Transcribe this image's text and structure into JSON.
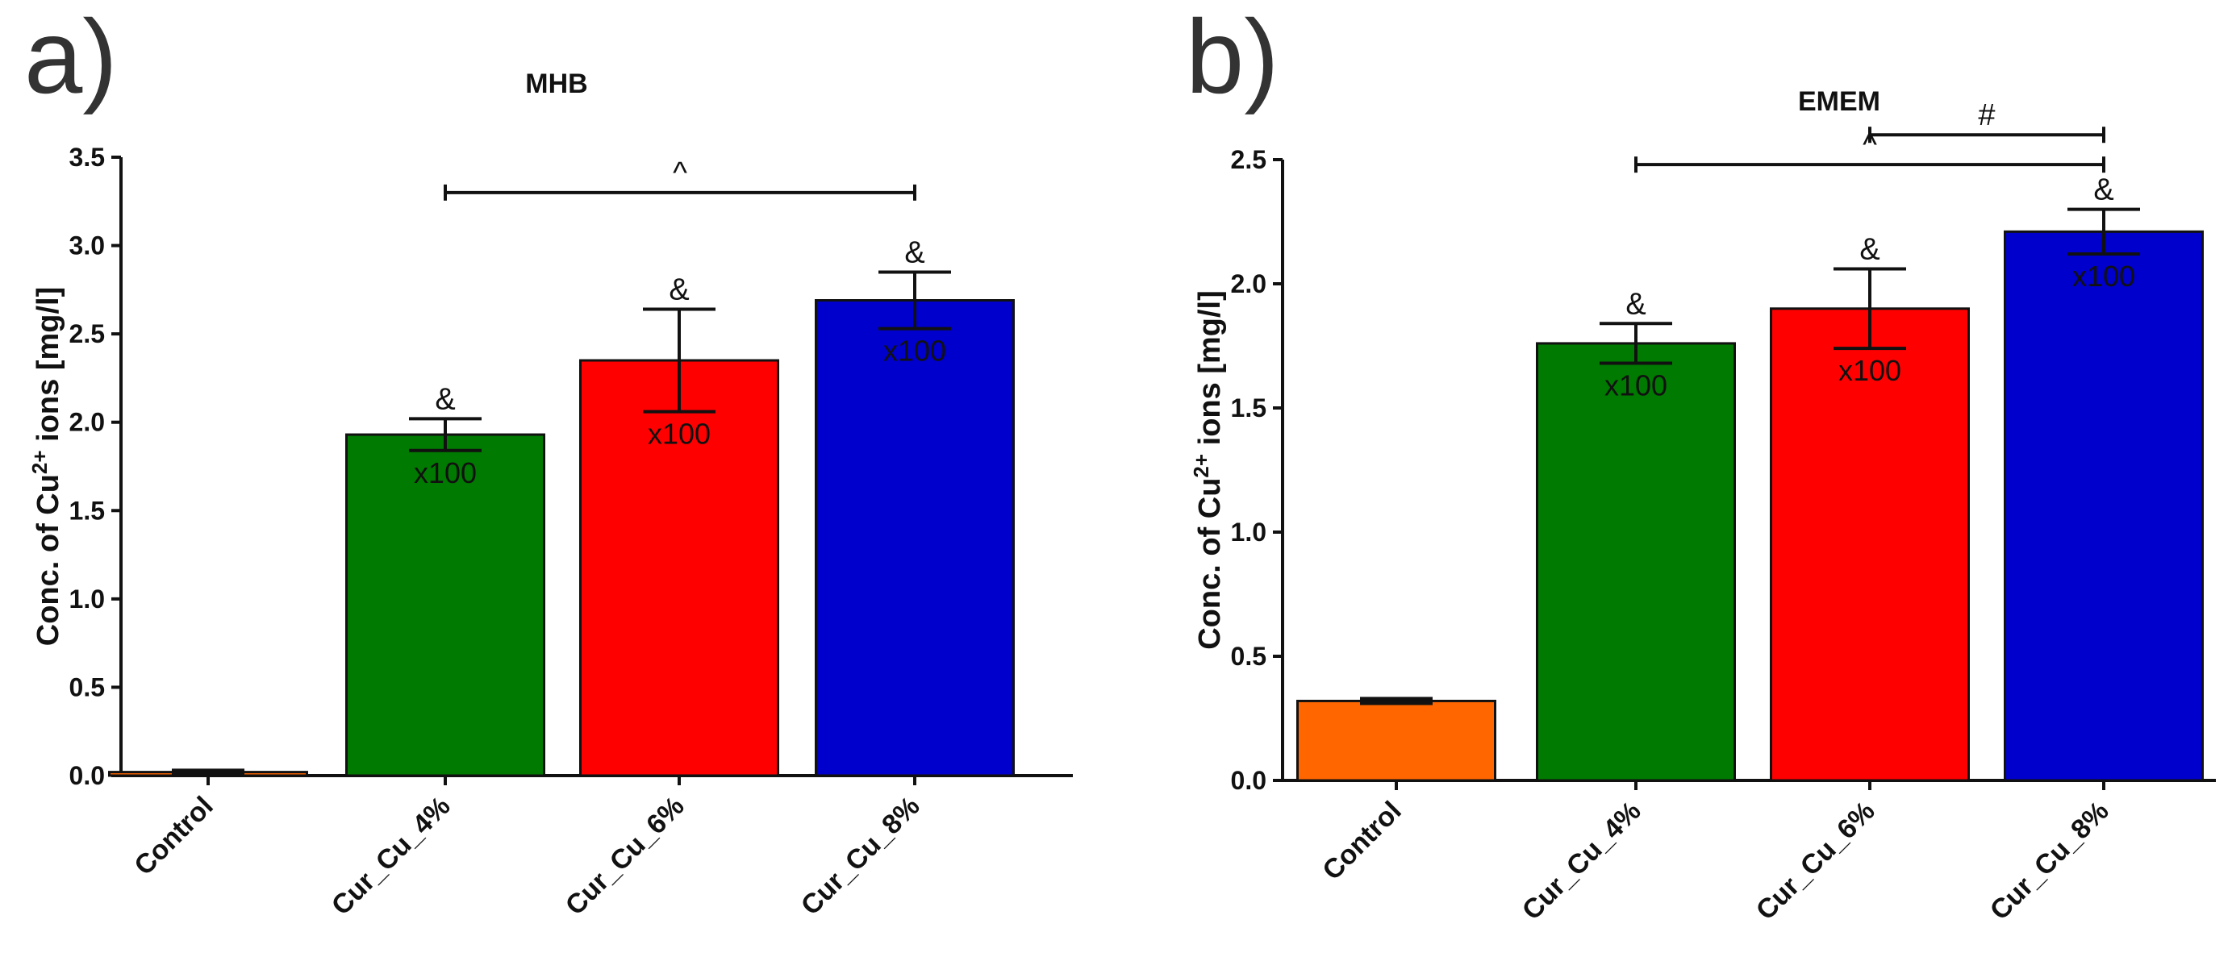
{
  "chart_data": [
    {
      "type": "bar",
      "panel_label": "a)",
      "title": "MHB",
      "ylabel_prefix": "Conc. of Cu",
      "ylabel_sup": "2+",
      "ylabel_suffix": " ions [mg/l]",
      "ylim": [
        0,
        3.5
      ],
      "yticks": [
        "0.0",
        "0.5",
        "1.0",
        "1.5",
        "2.0",
        "2.5",
        "3.0",
        "3.5"
      ],
      "categories": [
        "Control",
        "Cur_Cu_4%",
        "Cur_Cu_6%",
        "Cur_Cu_8%"
      ],
      "values": [
        0.02,
        1.93,
        2.35,
        2.69
      ],
      "errors": [
        0.01,
        0.09,
        0.29,
        0.16
      ],
      "colors": [
        "#ff6600",
        "#007a00",
        "#ff0000",
        "#0000cc"
      ],
      "bar_labels": [
        "",
        "x100",
        "x100",
        "x100"
      ],
      "marks": [
        "",
        "&",
        "&",
        "&"
      ],
      "brackets": [
        {
          "from": 1,
          "to": 3,
          "y": 3.3,
          "label": "^"
        }
      ]
    },
    {
      "type": "bar",
      "panel_label": "b)",
      "title": "EMEM",
      "ylabel_prefix": "Conc. of Cu",
      "ylabel_sup": "2+",
      "ylabel_suffix": " ions [mg/l]",
      "ylim": [
        0,
        2.5
      ],
      "yticks": [
        "0.0",
        "0.5",
        "1.0",
        "1.5",
        "2.0",
        "2.5"
      ],
      "categories": [
        "Control",
        "Cur_Cu_4%",
        "Cur_Cu_6%",
        "Cur_Cu_8%"
      ],
      "values": [
        0.32,
        1.76,
        1.9,
        2.21
      ],
      "errors": [
        0.01,
        0.08,
        0.16,
        0.09
      ],
      "colors": [
        "#ff6600",
        "#007a00",
        "#ff0000",
        "#0000cc"
      ],
      "bar_labels": [
        "",
        "x100",
        "x100",
        "x100"
      ],
      "marks": [
        "",
        "&",
        "&",
        "&"
      ],
      "brackets": [
        {
          "from": 1,
          "to": 3,
          "y": 2.48,
          "label": "^"
        },
        {
          "from": 2,
          "to": 3,
          "y": 2.6,
          "label": "#"
        }
      ]
    }
  ]
}
